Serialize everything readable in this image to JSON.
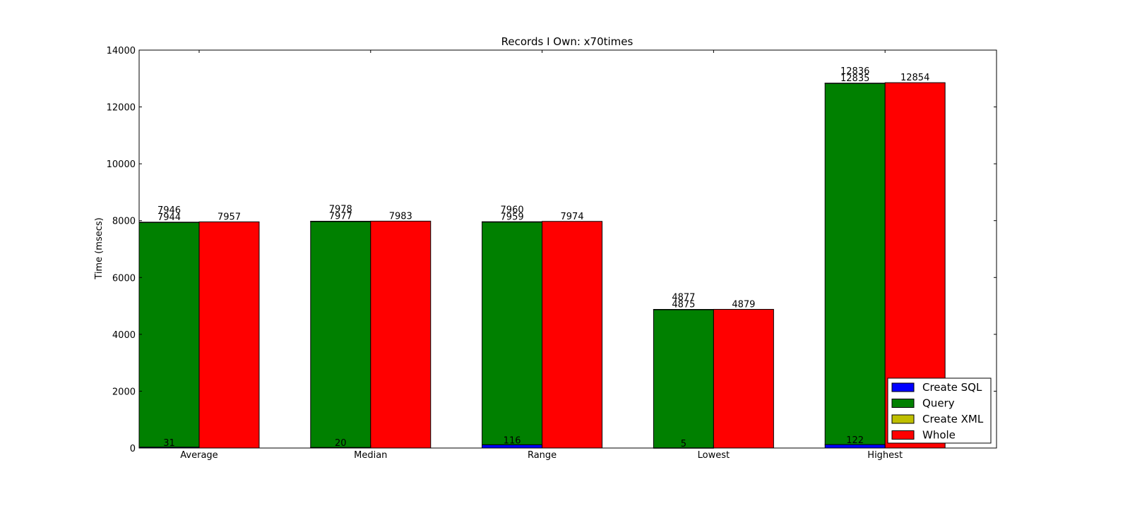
{
  "chart_data": {
    "type": "bar",
    "title": "Records I Own: x70times",
    "xlabel": "",
    "ylabel": "Time (msecs)",
    "ylim": [
      0,
      14000
    ],
    "yticks": [
      0,
      2000,
      4000,
      6000,
      8000,
      10000,
      12000,
      14000
    ],
    "grid": false,
    "legend_position": "bottom-right",
    "categories": [
      "Average",
      "Median",
      "Range",
      "Lowest",
      "Highest"
    ],
    "stacked_series": [
      {
        "name": "Create SQL",
        "color": "#0000ff",
        "values": [
          31,
          20,
          116,
          5,
          122
        ]
      },
      {
        "name": "Query",
        "color": "#008000",
        "values": [
          7913,
          7957,
          7843,
          4870,
          12713
        ]
      },
      {
        "name": "Create XML",
        "color": "#bfbf00",
        "values": [
          2,
          1,
          1,
          2,
          1
        ]
      }
    ],
    "stack_labels": {
      "create_sql": [
        "31",
        "20",
        "116",
        "5",
        "122"
      ],
      "query_cumulative": [
        "7944",
        "7977",
        "7959",
        "4875",
        "12835"
      ],
      "xml_cumulative": [
        "7946",
        "7978",
        "7960",
        "4877",
        "12836"
      ]
    },
    "whole_series": {
      "name": "Whole",
      "color": "#ff0000",
      "values": [
        7957,
        7983,
        7974,
        4879,
        12854
      ]
    },
    "whole_labels": [
      "7957",
      "7983",
      "7974",
      "4879",
      "12854"
    ]
  }
}
